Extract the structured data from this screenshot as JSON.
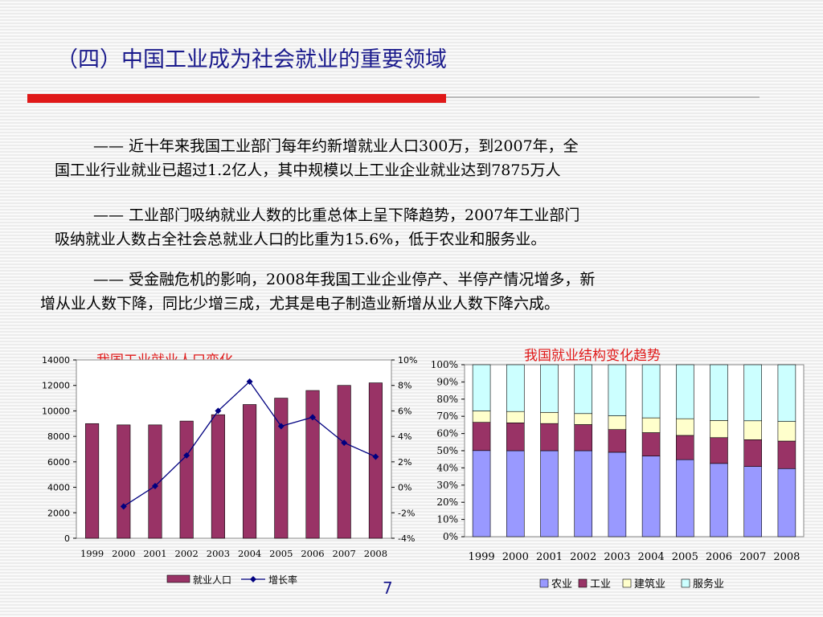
{
  "title": "（四）中国工业成为社会就业的重要领域",
  "paragraphs": [
    {
      "line1": "—— 近十年来我国工业部门每年约新增就业人口300万，到2007年，全",
      "line2": "国工业行业就业已超过1.2亿人，其中规模以上工业企业就业达到7875万人"
    },
    {
      "line1": "—— 工业部门吸纳就业人数的比重总体上呈下降趋势，2007年工业部门",
      "line2": "吸纳就业人数占全社会总就业人口的比重为15.6%，低于农业和服务业。"
    },
    {
      "line1": "—— 受金融危机的影响，2008年我国工业企业停产、半停产情况增多，新",
      "line2": "增从业人数下降，同比少增三成，尤其是电子制造业新增从业人数下降六成。"
    }
  ],
  "page_number": "7",
  "colors": {
    "title": "#1a1a8c",
    "accent_red": "#e01818",
    "bar": "#993366",
    "line": "#000080",
    "agri": "#9999ff",
    "industry": "#993366",
    "construction": "#ffffcc",
    "services": "#ccffff"
  },
  "chart_data": [
    {
      "type": "bar",
      "title": "我国工业就业人口变化",
      "categories": [
        "1999",
        "2000",
        "2001",
        "2002",
        "2003",
        "2004",
        "2005",
        "2006",
        "2007",
        "2008"
      ],
      "series": [
        {
          "name": "就业人口",
          "type": "bar",
          "axis": "left",
          "values": [
            9000,
            8900,
            8900,
            9200,
            9700,
            10500,
            11000,
            11600,
            12000,
            12200
          ]
        },
        {
          "name": "增长率",
          "type": "line",
          "axis": "right",
          "values": [
            null,
            -1.5,
            0.1,
            2.5,
            6.0,
            8.3,
            4.8,
            5.5,
            3.5,
            2.4
          ]
        }
      ],
      "yticks_left": [
        "0",
        "2000",
        "4000",
        "6000",
        "8000",
        "10000",
        "12000",
        "14000"
      ],
      "yticks_right": [
        "-4%",
        "-2%",
        "0%",
        "2%",
        "4%",
        "6%",
        "8%",
        "10%"
      ],
      "ylim_left": [
        0,
        14000
      ],
      "ylim_right": [
        -4,
        10
      ],
      "legend_position": "bottom"
    },
    {
      "type": "bar",
      "stacked": true,
      "title": "我国就业结构变化趋势",
      "categories": [
        "1999",
        "2000",
        "2001",
        "2002",
        "2003",
        "2004",
        "2005",
        "2006",
        "2007",
        "2008"
      ],
      "series": [
        {
          "name": "农业",
          "values": [
            50.1,
            50.0,
            50.0,
            50.0,
            49.1,
            46.9,
            44.8,
            42.6,
            40.8,
            39.6
          ]
        },
        {
          "name": "工业",
          "values": [
            16.4,
            16.2,
            15.8,
            15.2,
            13.2,
            13.6,
            14.1,
            15.0,
            15.6,
            16.0
          ]
        },
        {
          "name": "建筑业",
          "values": [
            6.6,
            6.6,
            6.5,
            6.4,
            8.0,
            8.6,
            9.7,
            10.0,
            11.0,
            11.4
          ]
        },
        {
          "name": "服务业",
          "values": [
            26.9,
            27.2,
            27.7,
            28.4,
            29.7,
            30.9,
            31.4,
            32.4,
            32.6,
            33.0
          ]
        }
      ],
      "yticks": [
        "0%",
        "10%",
        "20%",
        "30%",
        "40%",
        "50%",
        "60%",
        "70%",
        "80%",
        "90%",
        "100%"
      ],
      "ylim": [
        0,
        100
      ],
      "legend_position": "bottom"
    }
  ]
}
